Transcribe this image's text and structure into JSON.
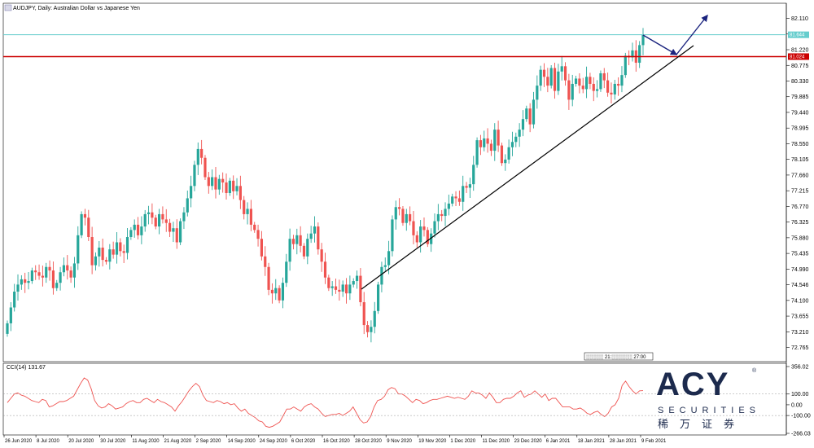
{
  "chart_header": "AUDJPY, Daily: Australian Dollar vs Japanese Yen",
  "indicator_header": "CCI(14) 131.67",
  "timer": "░░░░░ 21:░░░░░░ 27:00",
  "price_tags": {
    "current": "81.644",
    "level": "81.024"
  },
  "colors": {
    "bull": "#26a69a",
    "bear": "#ef5350",
    "current_line": "#66cdcd",
    "level_line": "#cc0000",
    "trend": "#000000",
    "arrow": "#1a237e",
    "cci": "#ef5350"
  },
  "logo": {
    "brand": "ACY",
    "sub": "SECURITIES",
    "cn": "稀万证券",
    "reg": "®"
  },
  "chart_data": [
    {
      "type": "candlestick",
      "title": "AUDJPY, Daily: Australian Dollar vs Japanese Yen",
      "y_ticks": [
        "82.110",
        "81.665",
        "81.220",
        "80.775",
        "80.330",
        "79.885",
        "79.440",
        "78.995",
        "78.550",
        "78.105",
        "77.660",
        "77.215",
        "76.770",
        "76.325",
        "75.880",
        "75.435",
        "74.990",
        "74.546",
        "74.100",
        "73.655",
        "73.210",
        "72.765"
      ],
      "ylim": [
        72.5,
        82.4
      ],
      "x_labels": [
        "26 Jun 2020",
        "8 Jul 2020",
        "20 Jul 2020",
        "30 Jul 2020",
        "11 Aug 2020",
        "21 Aug 2020",
        "2 Sep 2020",
        "14 Sep 2020",
        "24 Sep 2020",
        "6 Oct 2020",
        "16 Oct 2020",
        "28 Oct 2020",
        "9 Nov 2020",
        "19 Nov 2020",
        "1 Dec 2020",
        "11 Dec 2020",
        "23 Dec 2020",
        "6 Jan 2021",
        "18 Jan 2021",
        "28 Jan 2021",
        "9 Feb 2021"
      ],
      "current_price": 81.644,
      "horizontal_level": 81.024,
      "closes": [
        73.45,
        73.9,
        74.35,
        74.55,
        74.7,
        74.6,
        74.65,
        74.95,
        74.9,
        74.8,
        74.75,
        75.05,
        74.95,
        74.45,
        74.6,
        74.9,
        75.1,
        74.95,
        74.75,
        75.15,
        75.95,
        76.55,
        76.45,
        75.9,
        75.1,
        75.35,
        75.6,
        75.25,
        75.2,
        75.55,
        75.4,
        75.75,
        75.5,
        75.45,
        75.9,
        76.1,
        76.25,
        75.95,
        76.2,
        76.55,
        76.6,
        76.45,
        76.2,
        76.55,
        76.4,
        76.3,
        76.05,
        76.15,
        75.75,
        76.35,
        76.6,
        77.0,
        77.35,
        77.95,
        78.4,
        78.15,
        77.6,
        77.35,
        77.6,
        77.25,
        77.55,
        77.45,
        77.15,
        77.5,
        77.2,
        77.35,
        76.95,
        76.55,
        76.7,
        76.25,
        76.1,
        75.85,
        75.35,
        75.05,
        74.4,
        74.3,
        74.45,
        74.1,
        74.6,
        75.2,
        75.85,
        75.7,
        75.95,
        75.65,
        75.35,
        75.85,
        76.0,
        76.2,
        75.55,
        75.2,
        74.75,
        74.45,
        74.5,
        74.4,
        74.35,
        74.55,
        74.3,
        74.55,
        74.65,
        74.8,
        74.05,
        73.4,
        73.2,
        73.35,
        73.8,
        74.55,
        75.05,
        75.1,
        75.5,
        76.4,
        76.75,
        76.7,
        76.3,
        76.55,
        76.35,
        75.95,
        75.75,
        76.2,
        76.1,
        75.7,
        76.0,
        76.35,
        76.55,
        76.5,
        76.7,
        76.85,
        77.05,
        77.0,
        76.9,
        77.35,
        77.3,
        77.4,
        77.95,
        78.65,
        78.45,
        78.7,
        78.55,
        78.35,
        78.95,
        78.5,
        78.0,
        78.1,
        78.45,
        78.6,
        78.75,
        78.95,
        79.25,
        79.55,
        79.1,
        79.8,
        80.2,
        80.65,
        80.45,
        80.2,
        80.7,
        80.05,
        80.6,
        80.75,
        80.35,
        79.8,
        80.25,
        80.4,
        80.2,
        80.1,
        80.45,
        80.25,
        80.05,
        80.1,
        80.55,
        80.35,
        80.0,
        79.95,
        80.25,
        80.2,
        80.5,
        81.05,
        81.0,
        81.2,
        80.85,
        81.35,
        81.65
      ]
    },
    {
      "type": "line",
      "title": "CCI(14) 131.67",
      "y_ticks": [
        "356.02",
        "100.00",
        "0.00",
        "-100.00",
        "-266.03"
      ],
      "ylim": [
        -266.03,
        356.02
      ],
      "levels": [
        100,
        -100
      ],
      "values": [
        20,
        60,
        100,
        110,
        90,
        80,
        60,
        40,
        30,
        20,
        50,
        40,
        -20,
        -10,
        10,
        30,
        30,
        40,
        60,
        80,
        140,
        200,
        250,
        230,
        150,
        40,
        -10,
        -30,
        -20,
        10,
        -10,
        -40,
        -30,
        -20,
        10,
        30,
        40,
        20,
        20,
        50,
        60,
        40,
        20,
        50,
        30,
        20,
        0,
        -20,
        -60,
        -10,
        30,
        80,
        130,
        170,
        200,
        170,
        90,
        40,
        30,
        20,
        40,
        30,
        10,
        20,
        0,
        10,
        -30,
        -60,
        -40,
        -80,
        -100,
        -120,
        -150,
        -160,
        -200,
        -210,
        -200,
        -180,
        -160,
        -100,
        -40,
        -40,
        -20,
        -40,
        -60,
        -20,
        0,
        10,
        -20,
        -40,
        -80,
        -110,
        -100,
        -90,
        -90,
        -80,
        -100,
        -80,
        -60,
        -20,
        -80,
        -140,
        -170,
        -160,
        -110,
        -20,
        40,
        50,
        80,
        140,
        160,
        150,
        100,
        100,
        80,
        50,
        20,
        50,
        40,
        10,
        20,
        40,
        50,
        50,
        60,
        70,
        80,
        70,
        60,
        70,
        60,
        50,
        80,
        130,
        110,
        110,
        90,
        60,
        110,
        70,
        20,
        20,
        50,
        60,
        60,
        80,
        110,
        130,
        70,
        90,
        100,
        130,
        100,
        70,
        100,
        40,
        60,
        60,
        20,
        -20,
        -20,
        -20,
        -40,
        -40,
        -30,
        -50,
        -80,
        -90,
        -70,
        -60,
        -90,
        -110,
        -80,
        -20,
        0,
        60,
        180,
        220,
        170,
        130,
        100,
        130,
        131.67
      ]
    }
  ]
}
